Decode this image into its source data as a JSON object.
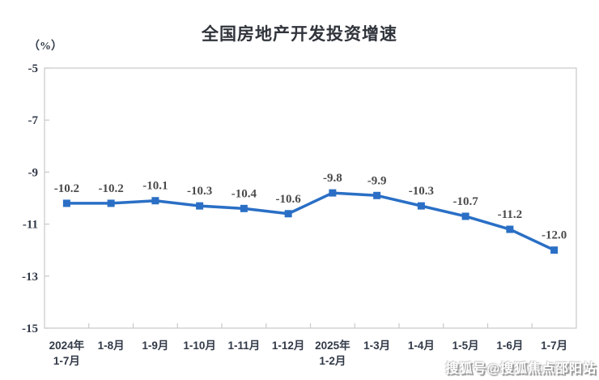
{
  "chart_data": {
    "type": "line",
    "title": "全国房地产开发投资增速",
    "unit_label": "（%）",
    "categories": [
      "2024年\n1-7月",
      "1-8月",
      "1-9月",
      "1-10月",
      "1-11月",
      "1-12月",
      "2025年\n1-2月",
      "1-3月",
      "1-4月",
      "1-5月",
      "1-6月",
      "1-7月"
    ],
    "series": [
      {
        "name": "全国房地产开发投资增速",
        "values": [
          -10.2,
          -10.2,
          -10.1,
          -10.3,
          -10.4,
          -10.6,
          -9.8,
          -9.9,
          -10.3,
          -10.7,
          -11.2,
          -12.0
        ]
      }
    ],
    "ylim": [
      -15,
      -5
    ],
    "yticks": [
      -5,
      -7,
      -9,
      -11,
      -13,
      -15
    ],
    "grid": false,
    "legend": "none",
    "data_labels": true,
    "colors": {
      "line": "#2A6FC5",
      "marker": "#2A6FC5",
      "axis_border": "#C9C9C9",
      "tick_label": "#323A48",
      "data_label": "#4A4A4A",
      "title": "#30343B"
    }
  },
  "watermark": {
    "text": "搜狐号@搜狐焦点邵阳站"
  }
}
